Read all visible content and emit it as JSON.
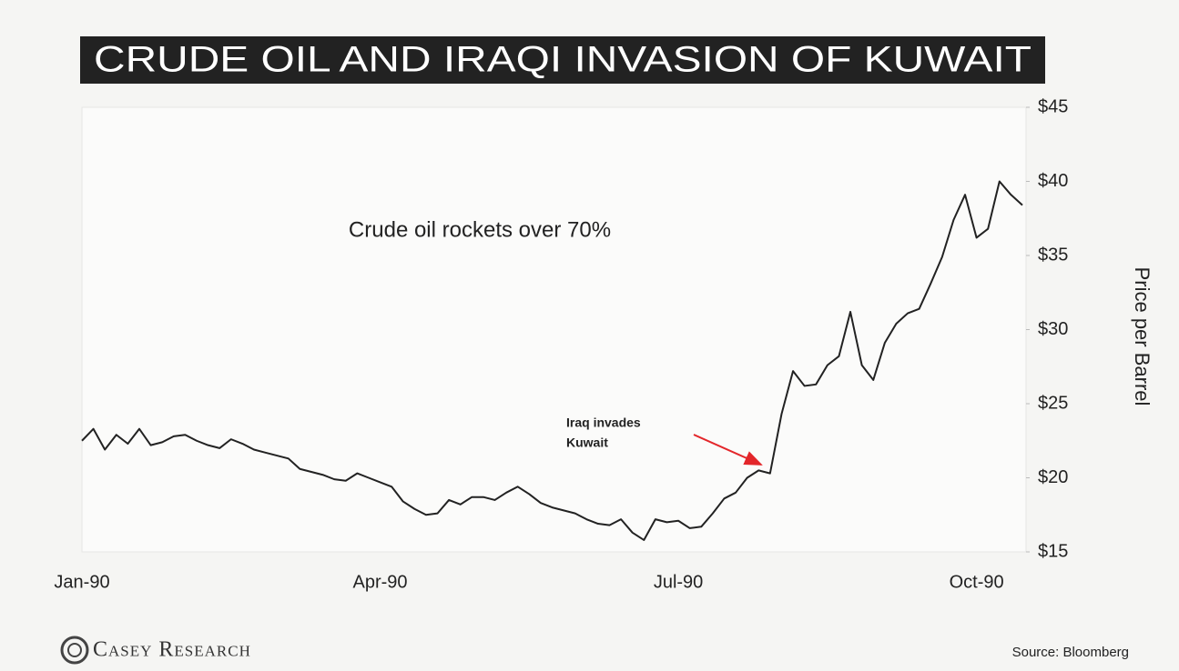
{
  "chart_data": {
    "type": "line",
    "title": "CRUDE OIL AND IRAQI INVASION OF KUWAIT",
    "annotation": "Crude oil rockets over 70%",
    "event_label": [
      "Iraq invades",
      "Kuwait"
    ],
    "ylabel": "Price per Barrel",
    "source": "Source: Bloomberg",
    "logo": "Casey Research",
    "categories": [
      "Jan-90",
      null,
      null,
      null,
      null,
      null,
      null,
      null,
      null,
      null,
      null,
      null,
      null,
      null,
      null,
      null,
      null,
      null,
      null,
      null,
      null,
      null,
      null,
      null,
      null,
      null,
      "Apr-90",
      null,
      null,
      null,
      null,
      null,
      null,
      null,
      null,
      null,
      null,
      null,
      null,
      null,
      null,
      null,
      null,
      null,
      null,
      null,
      null,
      null,
      null,
      null,
      null,
      null,
      "Jul-90",
      null,
      null,
      null,
      null,
      null,
      null,
      null,
      null,
      null,
      null,
      null,
      null,
      null,
      null,
      null,
      null,
      null,
      null,
      null,
      null,
      null,
      null,
      null,
      null,
      null,
      "Oct-90",
      null,
      null,
      null,
      null
    ],
    "series": [
      {
        "name": "Crude oil",
        "color": "#222222",
        "values": [
          22.5,
          23.3,
          21.9,
          22.9,
          22.3,
          23.3,
          22.2,
          22.4,
          22.8,
          22.9,
          22.5,
          22.2,
          22.0,
          22.6,
          22.3,
          21.9,
          21.7,
          21.5,
          21.3,
          20.6,
          20.4,
          20.2,
          19.9,
          19.8,
          20.3,
          20.0,
          19.7,
          19.4,
          18.4,
          17.9,
          17.5,
          17.6,
          18.5,
          18.2,
          18.7,
          18.7,
          18.5,
          19.0,
          19.4,
          18.9,
          18.3,
          18.0,
          17.8,
          17.6,
          17.2,
          16.9,
          16.8,
          17.2,
          16.3,
          15.8,
          17.2,
          17.0,
          17.1,
          16.6,
          16.7,
          17.6,
          18.6,
          19.0,
          20.0,
          20.5,
          20.3,
          24.3,
          27.2,
          26.2,
          26.3,
          27.6,
          28.2,
          31.2,
          27.6,
          26.6,
          29.1,
          30.4,
          31.1,
          31.4,
          33.1,
          34.9,
          37.4,
          39.1,
          36.2,
          36.8,
          40.0,
          39.1,
          38.4
        ]
      }
    ],
    "ylim": [
      15,
      45
    ],
    "yticks": [
      {
        "value": 15,
        "label": "$15"
      },
      {
        "value": 20,
        "label": "$20"
      },
      {
        "value": 25,
        "label": "$25"
      },
      {
        "value": 30,
        "label": "$30"
      },
      {
        "value": 35,
        "label": "$35"
      },
      {
        "value": 40,
        "label": "$40"
      },
      {
        "value": 45,
        "label": "$45"
      }
    ],
    "grid": false
  }
}
